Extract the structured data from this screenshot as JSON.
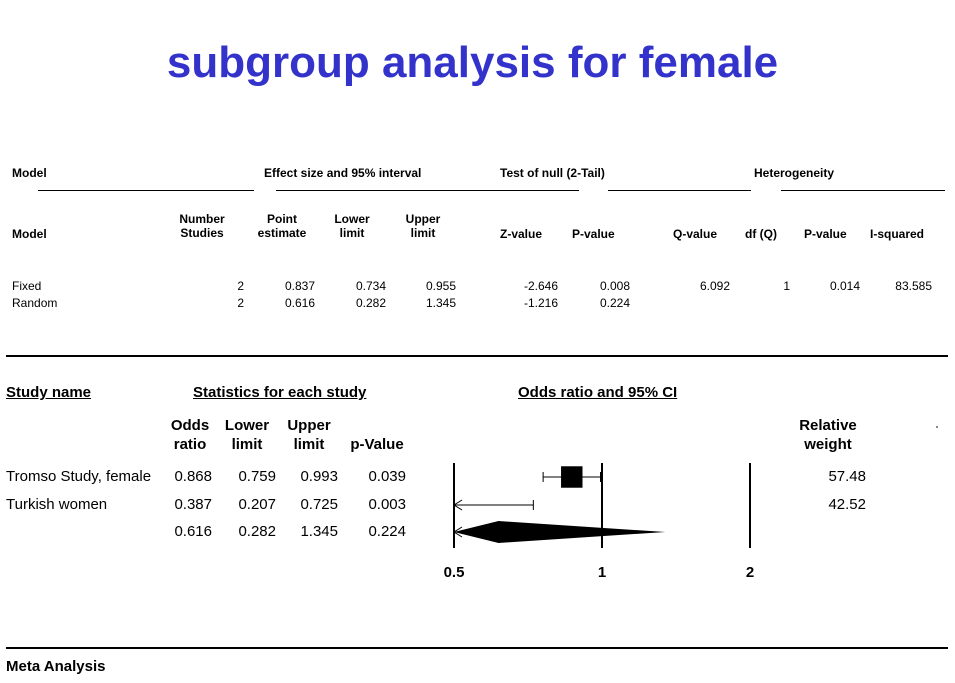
{
  "title": "subgroup analysis for female",
  "model_table": {
    "group_headers": {
      "model": "Model",
      "effect": "Effect size and 95% interval",
      "test": "Test of null (2-Tail)",
      "heterogeneity": "Heterogeneity"
    },
    "columns": {
      "model": "Model",
      "number_studies_1": "Number",
      "number_studies_2": "Studies",
      "point_1": "Point",
      "point_2": "estimate",
      "lower_1": "Lower",
      "lower_2": "limit",
      "upper_1": "Upper",
      "upper_2": "limit",
      "z": "Z-value",
      "p": "P-value",
      "q": "Q-value",
      "df": "df (Q)",
      "p_het": "P-value",
      "i2": "I-squared"
    },
    "rows": [
      {
        "model": "Fixed",
        "n": "2",
        "point": "0.837",
        "lower": "0.734",
        "upper": "0.955",
        "z": "-2.646",
        "p": "0.008",
        "q": "6.092",
        "df": "1",
        "p_het": "0.014",
        "i2": "83.585"
      },
      {
        "model": "Random",
        "n": "2",
        "point": "0.616",
        "lower": "0.282",
        "upper": "1.345",
        "z": "-1.216",
        "p": "0.224",
        "q": "",
        "df": "",
        "p_het": "",
        "i2": ""
      }
    ]
  },
  "forest": {
    "study_name_header": "Study name",
    "stats_header": "Statistics for each study",
    "plot_header": "Odds ratio and 95% CI",
    "col_or_1": "Odds",
    "col_or_2": "ratio",
    "col_lower_1": "Lower",
    "col_lower_2": "limit",
    "col_upper_1": "Upper",
    "col_upper_2": "limit",
    "col_p": "p-Value",
    "col_weight_1": "Relative",
    "col_weight_2": "weight",
    "rows": [
      {
        "name": "Tromso Study, female",
        "or": "0.868",
        "lower": "0.759",
        "upper": "0.993",
        "p": "0.039",
        "weight": "57.48"
      },
      {
        "name": "Turkish women",
        "or": "0.387",
        "lower": "0.207",
        "upper": "0.725",
        "p": "0.003",
        "weight": "42.52"
      },
      {
        "name": "",
        "or": "0.616",
        "lower": "0.282",
        "upper": "1.345",
        "p": "0.224",
        "weight": ""
      }
    ],
    "axis_ticks": [
      "0.5",
      "1",
      "2"
    ]
  },
  "footer": "Meta Analysis",
  "chart_data": {
    "type": "forest",
    "x_scale": "log",
    "xlim": [
      0.5,
      2
    ],
    "ticks": [
      0.5,
      1,
      2
    ],
    "studies": [
      {
        "name": "Tromso Study, female",
        "or": 0.868,
        "lower": 0.759,
        "upper": 0.993,
        "weight": 57.48
      },
      {
        "name": "Turkish women",
        "or": 0.387,
        "lower": 0.207,
        "upper": 0.725,
        "weight": 42.52
      }
    ],
    "summary": {
      "or": 0.616,
      "lower": 0.282,
      "upper": 1.345
    }
  }
}
